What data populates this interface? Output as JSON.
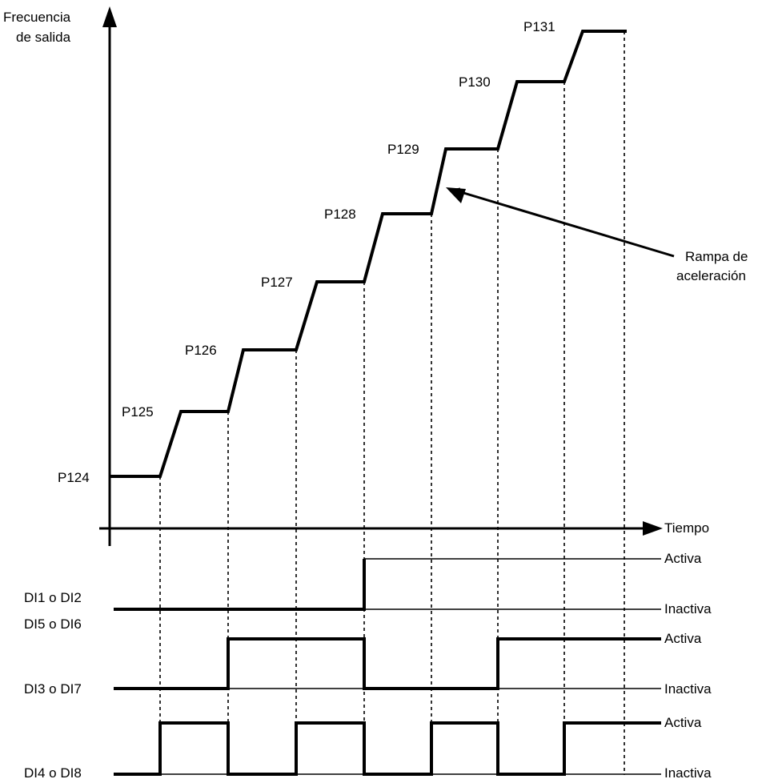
{
  "y_axis_label": [
    "Frecuencia",
    "de salida"
  ],
  "x_axis_label": "Tiempo",
  "speed_steps": [
    "P124",
    "P125",
    "P126",
    "P127",
    "P128",
    "P129",
    "P130",
    "P131"
  ],
  "ramp_annotation": [
    "Rampa de",
    "aceleración"
  ],
  "signals": [
    {
      "name": "DI1 o DI2",
      "active_label": "Activa",
      "inactive_label": "Inactiva"
    },
    {
      "name": "DI3 o DI7",
      "alt_name": "DI5 o DI6",
      "active_label": "Activa",
      "inactive_label": "Inactiva"
    },
    {
      "name": "DI4 o DI8",
      "active_label": "Activa",
      "inactive_label": "Inactiva"
    }
  ]
}
